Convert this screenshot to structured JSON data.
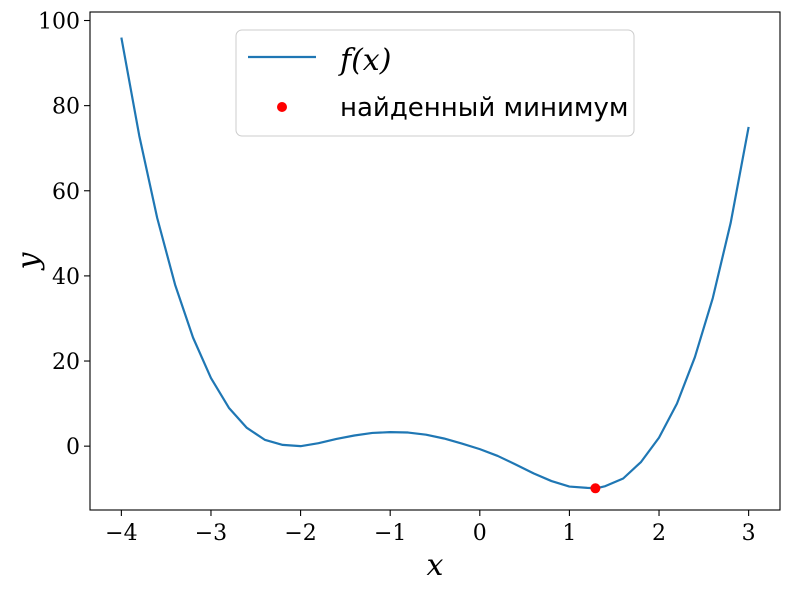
{
  "chart_data": {
    "type": "line",
    "title": "",
    "xlabel": "x",
    "ylabel": "y",
    "xlim": [
      -4.35,
      3.35
    ],
    "ylim": [
      -15,
      102
    ],
    "xticks": [
      -4,
      -3,
      -2,
      -1,
      0,
      1,
      2,
      3
    ],
    "xtick_labels": [
      "−4",
      "−3",
      "−2",
      "−1",
      "0",
      "1",
      "2",
      "3"
    ],
    "yticks": [
      0,
      20,
      40,
      60,
      80,
      100
    ],
    "ytick_labels": [
      "0",
      "20",
      "40",
      "60",
      "80",
      "100"
    ],
    "grid": false,
    "legend_position": "top-center",
    "series": [
      {
        "name": "f(x)",
        "kind": "line",
        "color": "#1f77b4",
        "x": [
          -4.0,
          -3.8,
          -3.6,
          -3.4,
          -3.2,
          -3.0,
          -2.8,
          -2.6,
          -2.4,
          -2.2,
          -2.0,
          -1.8,
          -1.6,
          -1.4,
          -1.2,
          -1.0,
          -0.8,
          -0.6,
          -0.4,
          -0.2,
          0.0,
          0.2,
          0.4,
          0.6,
          0.8,
          1.0,
          1.2,
          1.3,
          1.4,
          1.6,
          1.8,
          2.0,
          2.2,
          2.4,
          2.6,
          2.8,
          3.0
        ],
        "y": [
          96.0,
          72.9,
          53.6,
          37.9,
          25.5,
          16.0,
          9.0,
          4.3,
          1.5,
          0.3,
          0.0,
          0.7,
          1.7,
          2.5,
          3.1,
          3.3,
          3.2,
          2.7,
          1.8,
          0.6,
          -0.7,
          -2.3,
          -4.3,
          -6.4,
          -8.2,
          -9.5,
          -9.8,
          -9.9,
          -9.4,
          -7.6,
          -3.7,
          2.0,
          10.0,
          20.9,
          34.8,
          52.5,
          75.0
        ]
      },
      {
        "name": "найденный минимум",
        "kind": "scatter",
        "color": "#ff0000",
        "x": [
          1.29
        ],
        "y": [
          -9.9
        ]
      }
    ]
  },
  "legend": {
    "line_label": "f(x)",
    "point_label": "найденный минимум"
  }
}
